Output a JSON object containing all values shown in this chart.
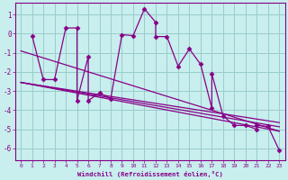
{
  "xlabel": "Windchill (Refroidissement éolien,°C)",
  "bg_color": "#c8eeed",
  "line_color": "#880088",
  "grid_color": "#99cccc",
  "xlim": [
    -0.5,
    23.5
  ],
  "ylim": [
    -6.6,
    1.6
  ],
  "yticks": [
    1,
    0,
    -1,
    -2,
    -3,
    -4,
    -5,
    -6
  ],
  "xticks": [
    0,
    1,
    2,
    3,
    4,
    5,
    6,
    7,
    8,
    9,
    10,
    11,
    12,
    13,
    14,
    15,
    16,
    17,
    18,
    19,
    20,
    21,
    22,
    23
  ],
  "line_x": [
    1,
    2,
    3,
    4,
    5,
    5,
    6,
    6,
    7,
    8,
    9,
    10,
    11,
    12,
    12,
    13,
    14,
    15,
    16,
    17,
    17,
    18,
    19,
    20,
    21,
    21,
    22,
    23
  ],
  "line_y": [
    -0.1,
    -2.4,
    -2.4,
    0.3,
    0.3,
    -3.5,
    -1.2,
    -3.5,
    -3.1,
    -3.4,
    -0.05,
    -0.1,
    1.3,
    0.6,
    -0.15,
    -0.15,
    -1.7,
    -0.8,
    -1.6,
    -3.9,
    -2.1,
    -4.3,
    -4.8,
    -4.8,
    -5.0,
    -4.8,
    -4.85,
    -6.1
  ],
  "reg_lines": [
    {
      "x0": 0,
      "y0": -2.55,
      "x1": 23,
      "y1": -5.1
    },
    {
      "x0": 0,
      "y0": -2.55,
      "x1": 23,
      "y1": -4.65
    },
    {
      "x0": 0,
      "y0": -2.55,
      "x1": 23,
      "y1": -4.87
    },
    {
      "x0": 0,
      "y0": -0.9,
      "x1": 23,
      "y1": -5.1
    }
  ]
}
